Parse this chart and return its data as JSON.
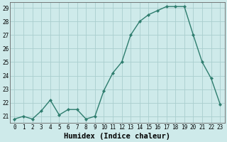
{
  "x": [
    0,
    1,
    2,
    3,
    4,
    5,
    6,
    7,
    8,
    9,
    10,
    11,
    12,
    13,
    14,
    15,
    16,
    17,
    18,
    19,
    20,
    21,
    22,
    23
  ],
  "y": [
    20.8,
    21.0,
    20.8,
    21.4,
    22.2,
    21.1,
    21.5,
    21.5,
    20.8,
    21.0,
    22.9,
    24.2,
    25.0,
    27.0,
    28.0,
    28.5,
    28.8,
    29.1,
    29.1,
    29.1,
    27.0,
    25.0,
    23.8,
    21.9
  ],
  "line_color": "#2e7d6e",
  "marker": "D",
  "marker_size": 2.2,
  "bg_color": "#ceeaea",
  "grid_color": "#aacece",
  "xlabel": "Humidex (Indice chaleur)",
  "ylim_min": 20.5,
  "ylim_max": 29.4,
  "xlim_min": -0.5,
  "xlim_max": 23.5,
  "yticks": [
    21,
    22,
    23,
    24,
    25,
    26,
    27,
    28,
    29
  ],
  "xticks": [
    0,
    1,
    2,
    3,
    4,
    5,
    6,
    7,
    8,
    9,
    10,
    11,
    12,
    13,
    14,
    15,
    16,
    17,
    18,
    19,
    20,
    21,
    22,
    23
  ],
  "tick_fontsize": 5.5,
  "xlabel_fontsize": 7.5,
  "line_width": 1.0
}
